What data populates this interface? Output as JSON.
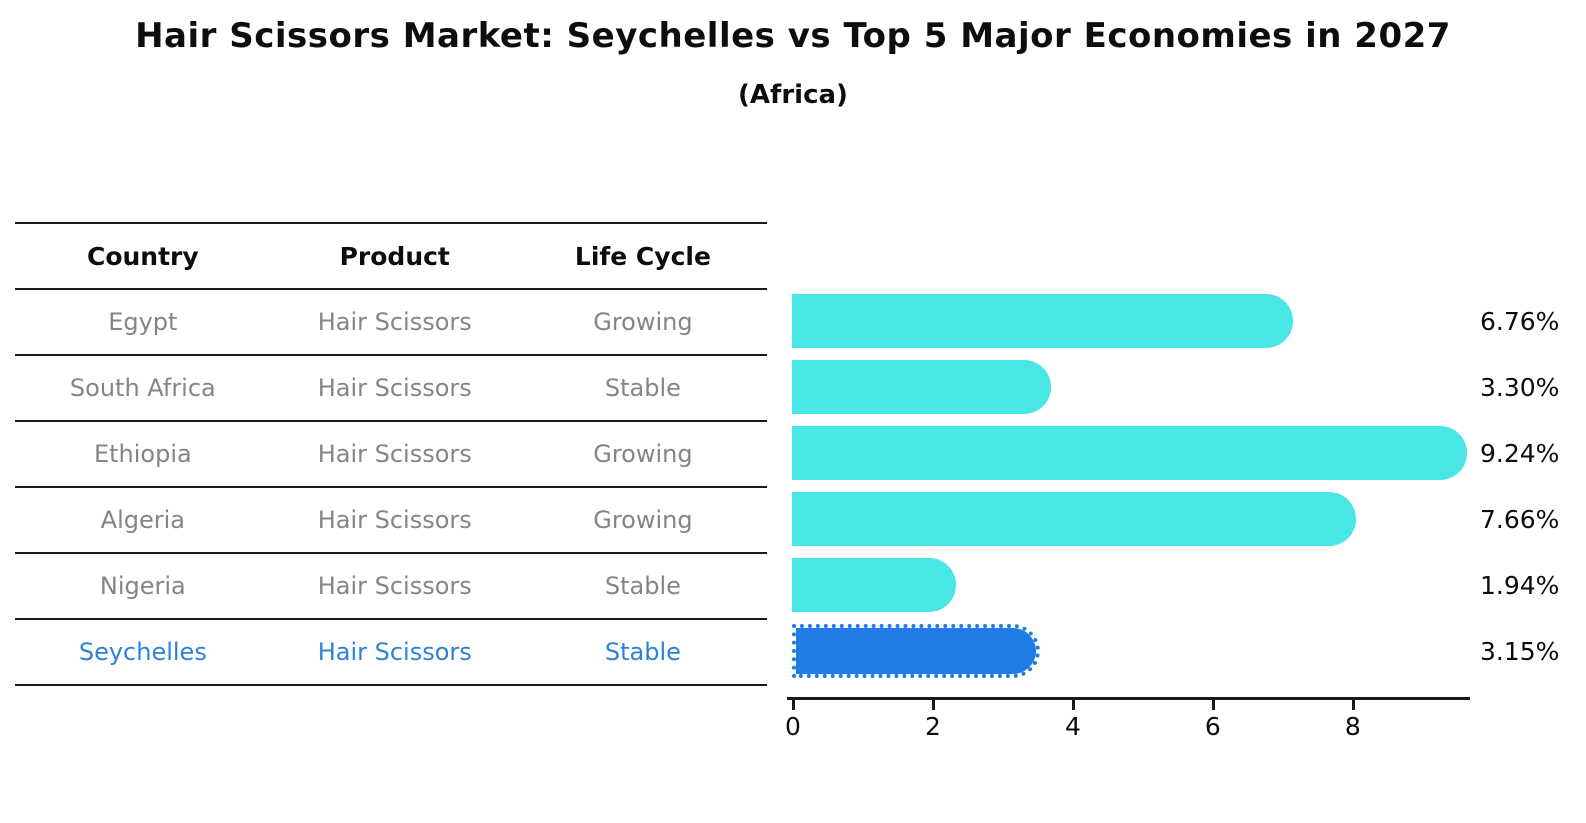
{
  "title": "Hair Scissors Market: Seychelles vs Top 5 Major Economies in 2027",
  "subtitle": "(Africa)",
  "table": {
    "headers": [
      "Country",
      "Product",
      "Life Cycle"
    ],
    "rows": [
      {
        "country": "Egypt",
        "product": "Hair Scissors",
        "life_cycle": "Growing",
        "highlighted": false
      },
      {
        "country": "South Africa",
        "product": "Hair Scissors",
        "life_cycle": "Stable",
        "highlighted": false
      },
      {
        "country": "Ethiopia",
        "product": "Hair Scissors",
        "life_cycle": "Growing",
        "highlighted": false
      },
      {
        "country": "Algeria",
        "product": "Hair Scissors",
        "life_cycle": "Growing",
        "highlighted": false
      },
      {
        "country": "Nigeria",
        "product": "Hair Scissors",
        "life_cycle": "Stable",
        "highlighted": false
      },
      {
        "country": "Seychelles",
        "product": "Hair Scissors",
        "life_cycle": "Stable",
        "highlighted": true
      }
    ]
  },
  "chart_data": {
    "type": "bar",
    "orientation": "horizontal",
    "title": "Hair Scissors Market: Seychelles vs Top 5 Major Economies in 2027",
    "subtitle": "(Africa)",
    "categories": [
      "Egypt",
      "South Africa",
      "Ethiopia",
      "Algeria",
      "Nigeria",
      "Seychelles"
    ],
    "values": [
      6.76,
      3.3,
      9.24,
      7.66,
      1.94,
      3.15
    ],
    "value_labels": [
      "6.76%",
      "3.30%",
      "9.24%",
      "7.66%",
      "1.94%",
      "3.15%"
    ],
    "x_ticks": [
      "0",
      "2",
      "4",
      "6",
      "8"
    ],
    "xlim": [
      0,
      9.66
    ],
    "xlabel": "",
    "ylabel": "",
    "grid": false,
    "legend": "none",
    "bar_color": "#48E6E4",
    "highlight_color": "#1E7CE4",
    "highlight_text_color": "#2E82D6",
    "highlight_index": 5
  }
}
